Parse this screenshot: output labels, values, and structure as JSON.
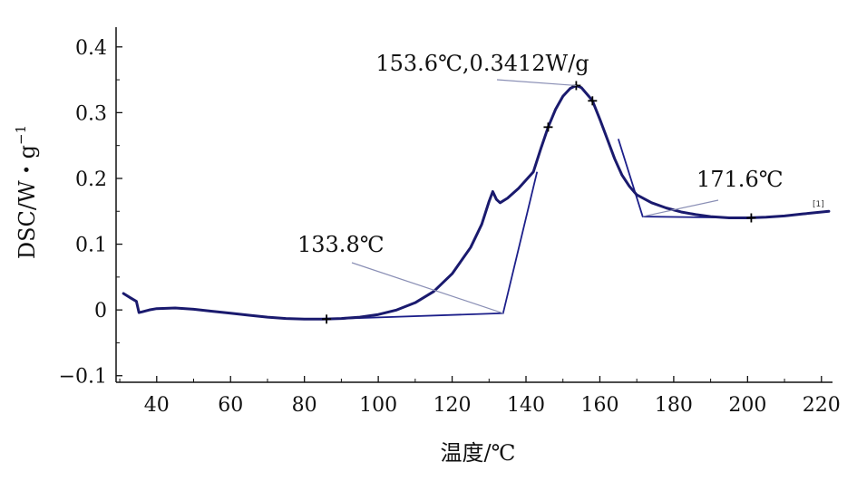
{
  "chart_data": {
    "type": "line",
    "xlabel": "温度/℃",
    "ylabel": "DSC/W・g",
    "ylabel_superscript": "−1",
    "xlim": [
      29,
      223
    ],
    "ylim": [
      -0.11,
      0.43
    ],
    "x_ticks": [
      40,
      60,
      80,
      100,
      120,
      140,
      160,
      180,
      200,
      220
    ],
    "x_tick_labels": [
      "40",
      "60",
      "80",
      "100",
      "120",
      "140",
      "160",
      "180",
      "200",
      "220"
    ],
    "y_ticks": [
      -0.1,
      0,
      0.1,
      0.2,
      0.3,
      0.4
    ],
    "y_tick_labels": [
      "−0.1",
      "0",
      "0.1",
      "0.2",
      "0.3",
      "0.4"
    ],
    "grid": false,
    "series": [
      {
        "color": "#1a1a6e",
        "points": [
          [
            31,
            0.025
          ],
          [
            33,
            0.018
          ],
          [
            34.5,
            0.013
          ],
          [
            35.2,
            -0.004
          ],
          [
            36,
            -0.003
          ],
          [
            38,
            0.0
          ],
          [
            40,
            0.002
          ],
          [
            45,
            0.003
          ],
          [
            50,
            0.001
          ],
          [
            55,
            -0.002
          ],
          [
            60,
            -0.005
          ],
          [
            65,
            -0.008
          ],
          [
            70,
            -0.011
          ],
          [
            75,
            -0.013
          ],
          [
            80,
            -0.014
          ],
          [
            85,
            -0.014
          ],
          [
            90,
            -0.013
          ],
          [
            95,
            -0.011
          ],
          [
            100,
            -0.007
          ],
          [
            105,
            0.0
          ],
          [
            110,
            0.011
          ],
          [
            115,
            0.028
          ],
          [
            120,
            0.055
          ],
          [
            125,
            0.095
          ],
          [
            128,
            0.13
          ],
          [
            130,
            0.165
          ],
          [
            131,
            0.18
          ],
          [
            132,
            0.168
          ],
          [
            133,
            0.163
          ],
          [
            135,
            0.17
          ],
          [
            138,
            0.185
          ],
          [
            142,
            0.21
          ],
          [
            144,
            0.245
          ],
          [
            146,
            0.278
          ],
          [
            148,
            0.305
          ],
          [
            150,
            0.325
          ],
          [
            152,
            0.337
          ],
          [
            153.6,
            0.3412
          ],
          [
            155,
            0.338
          ],
          [
            157,
            0.325
          ],
          [
            158,
            0.318
          ],
          [
            160,
            0.29
          ],
          [
            162,
            0.26
          ],
          [
            164,
            0.23
          ],
          [
            166,
            0.205
          ],
          [
            168,
            0.188
          ],
          [
            170,
            0.175
          ],
          [
            174,
            0.163
          ],
          [
            178,
            0.155
          ],
          [
            182,
            0.149
          ],
          [
            186,
            0.145
          ],
          [
            190,
            0.142
          ],
          [
            195,
            0.14
          ],
          [
            200,
            0.14
          ],
          [
            205,
            0.141
          ],
          [
            210,
            0.143
          ],
          [
            215,
            0.146
          ],
          [
            222,
            0.15
          ]
        ]
      }
    ],
    "baselines": [
      [
        [
          86,
          -0.014
        ],
        [
          133.8,
          -0.005
        ],
        [
          143,
          0.21
        ]
      ],
      [
        [
          165,
          0.26
        ],
        [
          171.6,
          0.142
        ],
        [
          200,
          0.14
        ]
      ]
    ],
    "markers": [
      [
        86,
        -0.014
      ],
      [
        146,
        0.278
      ],
      [
        153.6,
        0.3412
      ],
      [
        158,
        0.318
      ],
      [
        201,
        0.14
      ]
    ],
    "annotations": [
      {
        "text": "153.6℃,0.3412W/g",
        "x": 153.6,
        "y": 0.3412
      },
      {
        "text": "133.8℃",
        "x": 133.8,
        "y": -0.005
      },
      {
        "text": "171.6℃",
        "x": 171.6,
        "y": 0.142
      }
    ],
    "end_label": "[1]"
  }
}
